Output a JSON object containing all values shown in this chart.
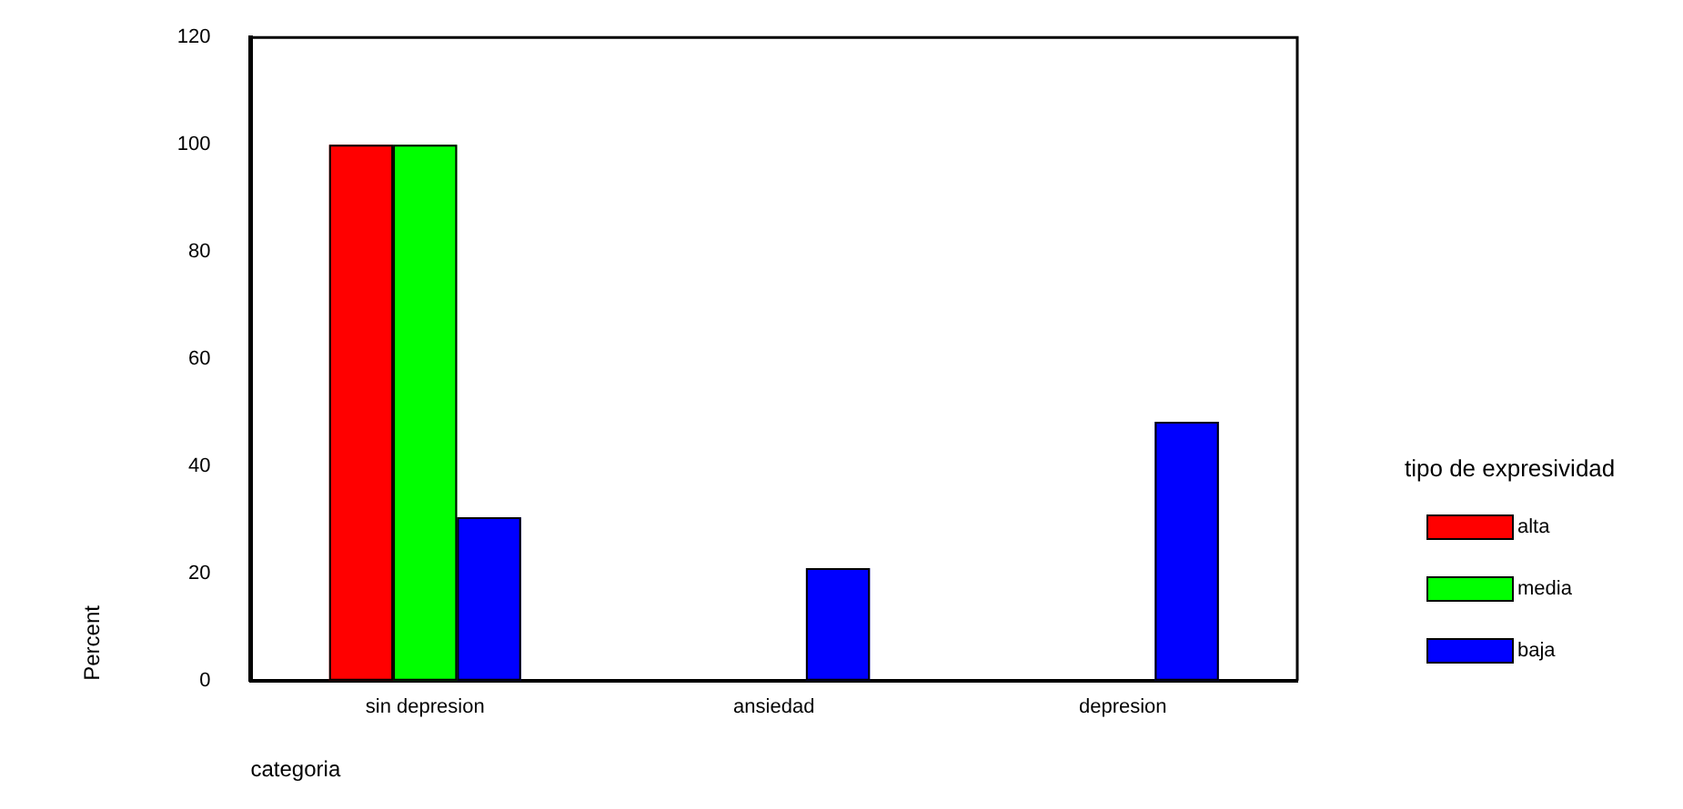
{
  "chart_data": {
    "type": "bar",
    "xlabel": "categoria",
    "ylabel": "Percent",
    "legend_title": "tipo de expresividad",
    "categories": [
      "sin depresion",
      "ansiedad",
      "depresion"
    ],
    "series": [
      {
        "name": "alta",
        "color": "#ff0000",
        "values": [
          100,
          0,
          0
        ]
      },
      {
        "name": "media",
        "color": "#00ff00",
        "values": [
          100,
          0,
          0
        ]
      },
      {
        "name": "baja",
        "color": "#0000ff",
        "values": [
          30.5,
          21,
          48.3
        ]
      }
    ],
    "ylim": [
      0,
      120
    ],
    "yticks": [
      0,
      20,
      40,
      60,
      80,
      100,
      120
    ],
    "grid": false,
    "legend": "right"
  }
}
